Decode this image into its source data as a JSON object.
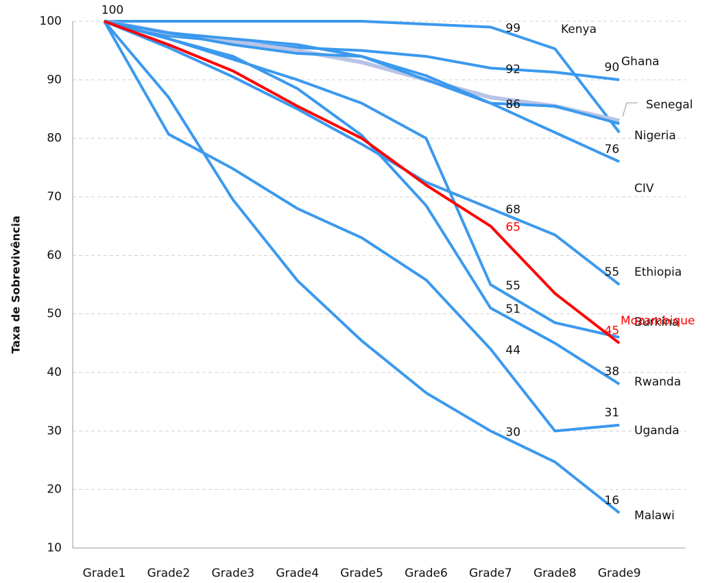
{
  "chart_data": {
    "type": "line",
    "y_label": "Taxa de Sobrevivência",
    "categories": [
      "Grade1",
      "Grade2",
      "Grade3",
      "Grade4",
      "Grade5",
      "Grade6",
      "Grade7",
      "Grade8",
      "Grade9"
    ],
    "ylim": [
      10,
      100
    ],
    "yticks": [
      10,
      20,
      30,
      40,
      50,
      60,
      70,
      80,
      90,
      100
    ],
    "grid": true,
    "series": [
      {
        "name": "Kenya",
        "color": "#3b99ee",
        "values": [
          100,
          100,
          100,
          100,
          100,
          99.5,
          99,
          95.3,
          81
        ],
        "label_points": [
          0,
          6
        ]
      },
      {
        "name": "Ghana",
        "color": "#3b99ee",
        "values": [
          100,
          97.5,
          96.5,
          95.5,
          95,
          94,
          92,
          91.3,
          90
        ],
        "label_points": [
          6,
          8
        ]
      },
      {
        "name": "Senegal",
        "color": "#b8c4e6",
        "values": [
          100,
          98,
          96.5,
          95,
          93,
          90,
          87,
          85.5,
          83
        ],
        "label_points": []
      },
      {
        "name": "Nigeria",
        "color": "#3b99ee",
        "values": [
          100,
          98,
          96,
          94.5,
          94,
          90.7,
          86,
          85.5,
          82.5
        ],
        "label_points": [
          6
        ]
      },
      {
        "name": "CIV",
        "color": "#3b99ee",
        "values": [
          100,
          98,
          97,
          96,
          94,
          90,
          86,
          81,
          76
        ],
        "label_points": [
          8
        ]
      },
      {
        "name": "Ethiopia",
        "color": "#3b99ee",
        "values": [
          100,
          95.5,
          90.5,
          85,
          79,
          72.5,
          68,
          63.5,
          55
        ],
        "label_points": [
          6,
          8
        ]
      },
      {
        "name": "Burkina",
        "color": "#3b99ee",
        "values": [
          100,
          97,
          93.5,
          90,
          86,
          80,
          55,
          48.5,
          46
        ],
        "label_points": [
          6
        ]
      },
      {
        "name": "Rwanda",
        "color": "#3b99ee",
        "values": [
          100,
          97,
          94,
          88.5,
          80.5,
          68.5,
          51,
          45,
          38
        ],
        "label_points": [
          6,
          8
        ]
      },
      {
        "name": "Uganda",
        "color": "#3b99ee",
        "values": [
          100,
          80.7,
          74.8,
          68,
          63,
          55.8,
          44,
          30,
          31
        ],
        "label_points": [
          6,
          8
        ]
      },
      {
        "name": "Malawi",
        "color": "#3b99ee",
        "values": [
          100,
          87,
          69.5,
          55.7,
          45.4,
          36.5,
          30,
          24.7,
          16
        ],
        "label_points": [
          6,
          8
        ]
      },
      {
        "name": "Mozambique",
        "color": "#ff0000",
        "values": [
          100,
          96,
          91.5,
          85.5,
          80,
          72,
          65,
          53.5,
          45
        ],
        "label_points": [
          6,
          8
        ]
      }
    ]
  }
}
